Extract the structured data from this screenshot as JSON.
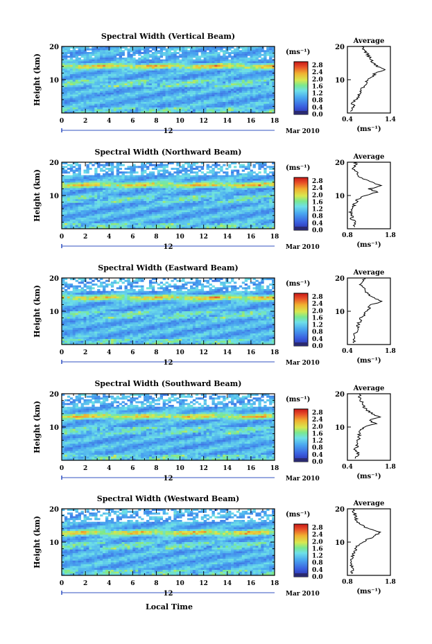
{
  "xlabel": "Local Time",
  "date_label": "Mar 2010",
  "day_label": "12",
  "colorbar": {
    "unit": "(ms⁻¹)",
    "ticks": [
      "2.8",
      "2.4",
      "2.0",
      "1.6",
      "1.2",
      "0.8",
      "0.4",
      "0.0"
    ],
    "range": [
      0.0,
      3.0
    ]
  },
  "x_ticks": [
    "0",
    "2",
    "4",
    "6",
    "8",
    "10",
    "12",
    "14",
    "16",
    "18"
  ],
  "xlim": [
    0,
    18
  ],
  "ylim": [
    0,
    20
  ],
  "y_ticks": [
    "20",
    "10"
  ],
  "ylabel": "Height (km)",
  "avg_title": "Average",
  "avg_xlabel": "(ms⁻¹)",
  "chart_data": [
    {
      "type": "heatmap",
      "title": "Spectral Width (Vertical Beam)",
      "avg_profile": {
        "xlim": [
          0.4,
          1.4
        ],
        "x_ticks": [
          "0.4",
          "1.4"
        ],
        "height_km": [
          1,
          2,
          3,
          4,
          5,
          6,
          7,
          8,
          9,
          10,
          11,
          12,
          13,
          14,
          15,
          16,
          17,
          18,
          19,
          20
        ],
        "width": [
          0.5,
          0.55,
          0.52,
          0.6,
          0.65,
          0.7,
          0.72,
          0.78,
          0.82,
          0.88,
          1.0,
          1.05,
          1.25,
          1.1,
          1.0,
          0.95,
          0.9,
          0.85,
          0.8,
          0.75
        ]
      }
    },
    {
      "type": "heatmap",
      "title": "Spectral Width (Northward Beam)",
      "avg_profile": {
        "xlim": [
          0.8,
          1.8
        ],
        "x_ticks": [
          "0.8",
          "1.8"
        ],
        "height_km": [
          1,
          2,
          3,
          4,
          5,
          6,
          7,
          8,
          9,
          10,
          11,
          12,
          13,
          14,
          15,
          16,
          17,
          18,
          19,
          20
        ],
        "width": [
          0.95,
          1.0,
          0.9,
          0.92,
          0.88,
          0.9,
          0.95,
          1.0,
          1.05,
          1.2,
          1.5,
          1.3,
          1.6,
          1.35,
          1.15,
          1.05,
          1.0,
          0.95,
          0.98,
          1.0
        ]
      }
    },
    {
      "type": "heatmap",
      "title": "Spectral Width (Eastward Beam)",
      "avg_profile": {
        "xlim": [
          0.4,
          1.8
        ],
        "x_ticks": [
          "0.4",
          "1.8"
        ],
        "height_km": [
          1,
          2,
          3,
          4,
          5,
          6,
          7,
          8,
          9,
          10,
          11,
          12,
          13,
          14,
          15,
          16,
          17,
          18,
          19,
          20
        ],
        "width": [
          0.6,
          0.65,
          0.6,
          0.7,
          0.72,
          0.75,
          0.8,
          0.85,
          0.95,
          1.0,
          1.1,
          1.2,
          1.5,
          1.3,
          1.1,
          1.0,
          0.9,
          0.85,
          0.9,
          0.95
        ]
      }
    },
    {
      "type": "heatmap",
      "title": "Spectral Width (Southward Beam)",
      "avg_profile": {
        "xlim": [
          0.4,
          1.8
        ],
        "x_ticks": [
          "0.4",
          "1.8"
        ],
        "height_km": [
          1,
          2,
          3,
          4,
          5,
          6,
          7,
          8,
          9,
          10,
          11,
          12,
          13,
          14,
          15,
          16,
          17,
          18,
          19,
          20
        ],
        "width": [
          0.7,
          0.75,
          0.65,
          0.7,
          0.72,
          0.75,
          0.78,
          0.8,
          0.85,
          0.95,
          1.3,
          1.1,
          1.45,
          1.2,
          1.05,
          0.95,
          0.9,
          0.85,
          0.8,
          0.78
        ]
      }
    },
    {
      "type": "heatmap",
      "title": "Spectral Width (Westward Beam)",
      "avg_profile": {
        "xlim": [
          0.8,
          1.8
        ],
        "x_ticks": [
          "0.8",
          "1.8"
        ],
        "height_km": [
          1,
          2,
          3,
          4,
          5,
          6,
          7,
          8,
          9,
          10,
          11,
          12,
          13,
          14,
          15,
          16,
          17,
          18,
          19,
          20
        ],
        "width": [
          0.9,
          0.92,
          0.88,
          0.9,
          0.9,
          0.92,
          0.95,
          1.0,
          1.05,
          1.15,
          1.3,
          1.45,
          1.55,
          1.3,
          1.15,
          1.05,
          1.0,
          0.98,
          0.95,
          0.95
        ]
      }
    }
  ]
}
